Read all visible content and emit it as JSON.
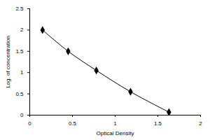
{
  "chart_data": {
    "type": "line",
    "x_label": "Optical Density",
    "y_label": "Log. of concentration",
    "x": [
      0.15,
      0.45,
      0.78,
      1.18,
      1.63
    ],
    "values": [
      2.0,
      1.5,
      1.05,
      0.55,
      0.07
    ],
    "color": "#000000",
    "marker": "diamond",
    "line_style": "solid",
    "xlim": [
      0,
      2
    ],
    "xticks": [
      0,
      0.5,
      1,
      1.5,
      2
    ],
    "ylim": [
      0,
      2.5
    ],
    "yticks": [
      0,
      0.5,
      1,
      1.5,
      2,
      2.5
    ],
    "grid": false
  }
}
